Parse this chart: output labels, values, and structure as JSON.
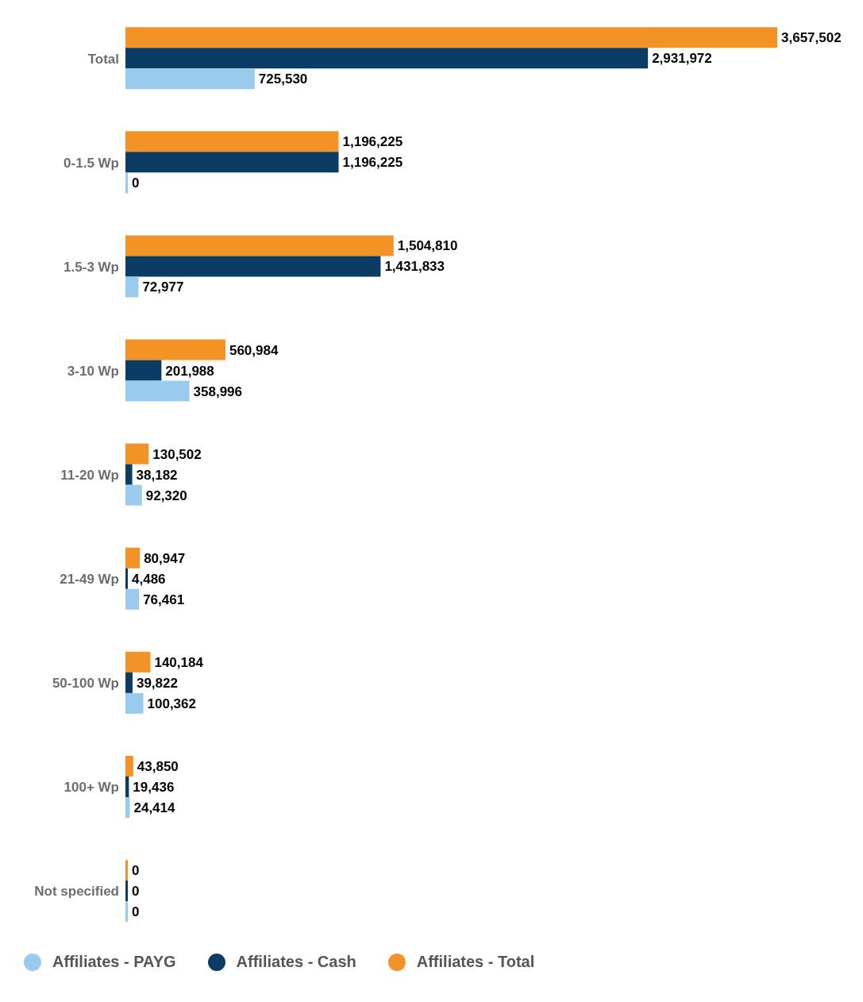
{
  "chart_data": {
    "type": "bar",
    "orientation": "horizontal",
    "categories": [
      "Total",
      "0-1.5 Wp",
      "1.5-3 Wp",
      "3-10 Wp",
      "11-20 Wp",
      "21-49 Wp",
      "50-100 Wp",
      "100+ Wp",
      "Not specified"
    ],
    "series": [
      {
        "name": "Affiliates - PAYG",
        "color": "#99cbee",
        "values": [
          725530,
          0,
          72977,
          358996,
          92320,
          76461,
          100362,
          24414,
          0
        ],
        "value_labels": [
          "725,530",
          "0",
          "72,977",
          "358,996",
          "92,320",
          "76,461",
          "100,362",
          "24,414",
          "0"
        ]
      },
      {
        "name": "Affiliates - Cash",
        "color": "#0b3c64",
        "values": [
          2931972,
          1196225,
          1431833,
          201988,
          38182,
          4486,
          39822,
          19436,
          0
        ],
        "value_labels": [
          "2,931,972",
          "1,196,225",
          "1,431,833",
          "201,988",
          "38,182",
          "4,486",
          "39,822",
          "19,436",
          "0"
        ]
      },
      {
        "name": "Affiliates - Total",
        "color": "#f39325",
        "values": [
          3657502,
          1196225,
          1504810,
          560984,
          130502,
          80947,
          140184,
          43850,
          0
        ],
        "value_labels": [
          "3,657,502",
          "1,196,225",
          "1,504,810",
          "560,984",
          "130,502",
          "80,947",
          "140,184",
          "43,850",
          "0"
        ]
      }
    ],
    "legend": "bottom"
  }
}
